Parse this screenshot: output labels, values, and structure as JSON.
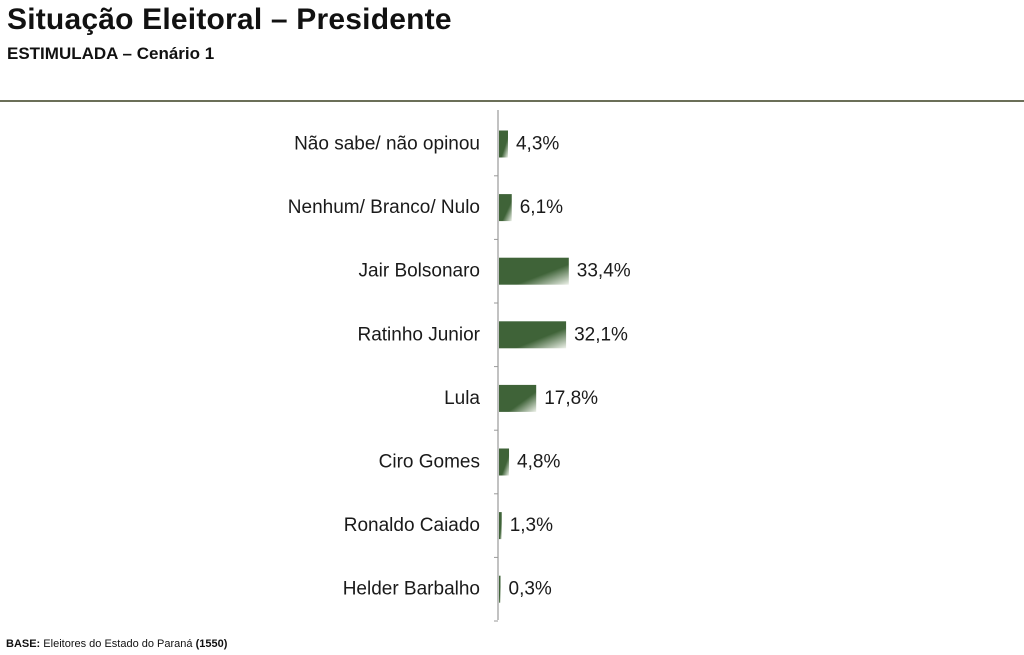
{
  "header": {
    "title": "Situação Eleitoral – Presidente",
    "subtitle": "ESTIMULADA – Cenário 1"
  },
  "footer": {
    "base_label": "BASE:",
    "base_text": "Eleitores do Estado do Paraná",
    "base_count": "(1550)"
  },
  "colors": {
    "bar_dark": "#3f6338",
    "bar_light": "#eef2ea",
    "axis": "#9a9a9a",
    "rule": "#6b6f58"
  },
  "chart_data": {
    "type": "bar",
    "orientation": "horizontal",
    "title": "Situação Eleitoral – Presidente",
    "subtitle": "ESTIMULADA – Cenário 1",
    "unit": "%",
    "categories": [
      "Não sabe/ não opinou",
      "Nenhum/ Branco/ Nulo",
      "Jair Bolsonaro",
      "Ratinho Junior",
      "Lula",
      "Ciro Gomes",
      "Ronaldo Caiado",
      "Helder Barbalho"
    ],
    "values": [
      4.3,
      6.1,
      33.4,
      32.1,
      17.8,
      4.8,
      1.3,
      0.3
    ],
    "value_labels": [
      "4,3%",
      "6,1%",
      "33,4%",
      "32,1%",
      "17,8%",
      "4,8%",
      "1,3%",
      "0,3%"
    ],
    "xlim": [
      0,
      100
    ],
    "grid": false,
    "legend": "none"
  }
}
